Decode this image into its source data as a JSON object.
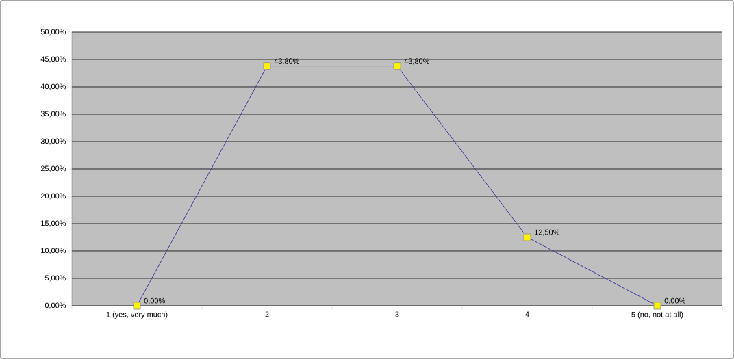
{
  "chart_data": {
    "type": "line",
    "categories": [
      "1 (yes, very much)",
      "2",
      "3",
      "4",
      "5 (no, not at all)"
    ],
    "values": [
      0,
      43.8,
      43.8,
      12.5,
      0
    ],
    "value_labels": [
      "0,00%",
      "43,80%",
      "43,80%",
      "12,50%",
      "0,00%"
    ],
    "color": "#3c3c9c",
    "marker": "square",
    "grid": "y",
    "ylim": [
      0,
      50
    ],
    "yticks": [
      {
        "value": 0,
        "label": "0,00%"
      },
      {
        "value": 5,
        "label": "5,00%"
      },
      {
        "value": 10,
        "label": "10,00%"
      },
      {
        "value": 15,
        "label": "15,00%"
      },
      {
        "value": 20,
        "label": "20,00%"
      },
      {
        "value": 25,
        "label": "25,00%"
      },
      {
        "value": 30,
        "label": "30,00%"
      },
      {
        "value": 35,
        "label": "35,00%"
      },
      {
        "value": 40,
        "label": "40,00%"
      },
      {
        "value": 45,
        "label": "45,00%"
      },
      {
        "value": 50,
        "label": "50,00%"
      }
    ]
  }
}
